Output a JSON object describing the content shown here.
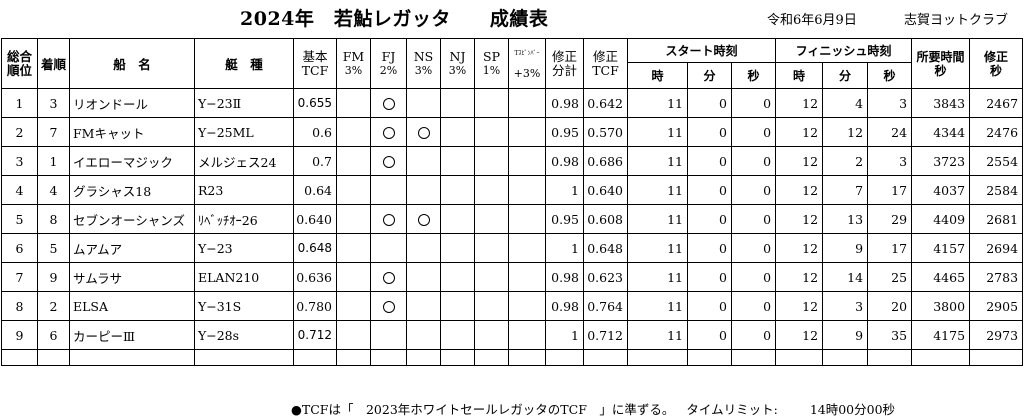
{
  "header": {
    "title": "2024年　若鮎レガッタ　　成績表",
    "date": "令和6年6月9日",
    "club": "志賀ヨットクラブ"
  },
  "columns": {
    "overall_rank": [
      "総合",
      "順位"
    ],
    "finish_order": "着順",
    "boat_name": "船　名",
    "boat_class": "艇　種",
    "base_tcf": [
      "基本",
      "TCF"
    ],
    "fm": [
      "FM",
      "3%"
    ],
    "fj": [
      "FJ",
      "2%"
    ],
    "ns": [
      "NS",
      "3%"
    ],
    "nj": [
      "NJ",
      "3%"
    ],
    "sp": [
      "SP",
      "1%"
    ],
    "t_spin": [
      "Tｽﾋﾟﾝﾊﾞｰ",
      "+3%"
    ],
    "corr_total": [
      "修正",
      "分計"
    ],
    "corr_tcf": [
      "修正",
      "TCF"
    ],
    "start_time": "スタート時刻",
    "finish_time": "フィニッシュ時刻",
    "hour": "時",
    "minute": "分",
    "second": "秒",
    "elapsed": [
      "所要時間",
      "秒"
    ],
    "corrected": [
      "修正",
      "秒"
    ]
  },
  "mark_symbol": "circle",
  "rows": [
    {
      "rank": "1",
      "order": "3",
      "name": "リオンドール",
      "class": "Y−23Ⅱ",
      "tcf": "0.655",
      "tcf_bold": true,
      "fm": false,
      "fj": true,
      "ns": false,
      "nj": false,
      "sp": false,
      "tspin": false,
      "total": "0.98",
      "ctcf": "0.642",
      "sh": "11",
      "sm": "0",
      "ss": "0",
      "fh": "12",
      "fm_min": "4",
      "fs": "3",
      "elapsed": "3843",
      "corrected": "2467"
    },
    {
      "rank": "2",
      "order": "7",
      "name": "FMキャット",
      "class": "Y−25ML",
      "tcf": "0.6",
      "tcf_bold": false,
      "fm": false,
      "fj": true,
      "ns": true,
      "nj": false,
      "sp": false,
      "tspin": false,
      "total": "0.95",
      "ctcf": "0.570",
      "sh": "11",
      "sm": "0",
      "ss": "0",
      "fh": "12",
      "fm_min": "12",
      "fs": "24",
      "elapsed": "4344",
      "corrected": "2476"
    },
    {
      "rank": "3",
      "order": "1",
      "name": "イエローマジック",
      "class": "メルジェス24",
      "tcf": "0.7",
      "tcf_bold": false,
      "fm": false,
      "fj": true,
      "ns": false,
      "nj": false,
      "sp": false,
      "tspin": false,
      "total": "0.98",
      "ctcf": "0.686",
      "sh": "11",
      "sm": "0",
      "ss": "0",
      "fh": "12",
      "fm_min": "2",
      "fs": "3",
      "elapsed": "3723",
      "corrected": "2554"
    },
    {
      "rank": "4",
      "order": "4",
      "name": "グラシャス18",
      "class": "R23",
      "tcf": "0.64",
      "tcf_bold": false,
      "fm": false,
      "fj": false,
      "ns": false,
      "nj": false,
      "sp": false,
      "tspin": false,
      "total": "1",
      "ctcf": "0.640",
      "sh": "11",
      "sm": "0",
      "ss": "0",
      "fh": "12",
      "fm_min": "7",
      "fs": "17",
      "elapsed": "4037",
      "corrected": "2584"
    },
    {
      "rank": "5",
      "order": "8",
      "name": "セブンオーシャンズ",
      "class": "ﾘﾍﾞｯﾁｵｰ26",
      "tcf": "0.640",
      "tcf_bold": false,
      "fm": false,
      "fj": true,
      "ns": true,
      "nj": false,
      "sp": false,
      "tspin": false,
      "total": "0.95",
      "ctcf": "0.608",
      "sh": "11",
      "sm": "0",
      "ss": "0",
      "fh": "12",
      "fm_min": "13",
      "fs": "29",
      "elapsed": "4409",
      "corrected": "2681"
    },
    {
      "rank": "6",
      "order": "5",
      "name": "ムアムア",
      "class": "Y−23",
      "tcf": "0.648",
      "tcf_bold": true,
      "fm": false,
      "fj": false,
      "ns": false,
      "nj": false,
      "sp": false,
      "tspin": false,
      "total": "1",
      "ctcf": "0.648",
      "sh": "11",
      "sm": "0",
      "ss": "0",
      "fh": "12",
      "fm_min": "9",
      "fs": "17",
      "elapsed": "4157",
      "corrected": "2694"
    },
    {
      "rank": "7",
      "order": "9",
      "name": "サムラサ",
      "class": "ELAN210",
      "tcf": "0.636",
      "tcf_bold": false,
      "fm": false,
      "fj": true,
      "ns": false,
      "nj": false,
      "sp": false,
      "tspin": false,
      "total": "0.98",
      "ctcf": "0.623",
      "sh": "11",
      "sm": "0",
      "ss": "0",
      "fh": "12",
      "fm_min": "14",
      "fs": "25",
      "elapsed": "4465",
      "corrected": "2783"
    },
    {
      "rank": "8",
      "order": "2",
      "name": "ELSA",
      "class": "Y−31S",
      "tcf": "0.780",
      "tcf_bold": false,
      "fm": false,
      "fj": true,
      "ns": false,
      "nj": false,
      "sp": false,
      "tspin": false,
      "total": "0.98",
      "ctcf": "0.764",
      "sh": "11",
      "sm": "0",
      "ss": "0",
      "fh": "12",
      "fm_min": "3",
      "fs": "20",
      "elapsed": "3800",
      "corrected": "2905"
    },
    {
      "rank": "9",
      "order": "6",
      "name": "カーピーⅢ",
      "class": "Y−28s",
      "tcf": "0.712",
      "tcf_bold": true,
      "fm": false,
      "fj": false,
      "ns": false,
      "nj": false,
      "sp": false,
      "tspin": false,
      "total": "1",
      "ctcf": "0.712",
      "sh": "11",
      "sm": "0",
      "ss": "0",
      "fh": "12",
      "fm_min": "9",
      "fs": "35",
      "elapsed": "4175",
      "corrected": "2973"
    }
  ],
  "footer": {
    "note": "●TCFは「　2023年ホワイトセールレガッタのTCF　」に準ずる。",
    "time_limit_label": "タイムリミット:",
    "time_limit_value": "14時00分00秒"
  }
}
